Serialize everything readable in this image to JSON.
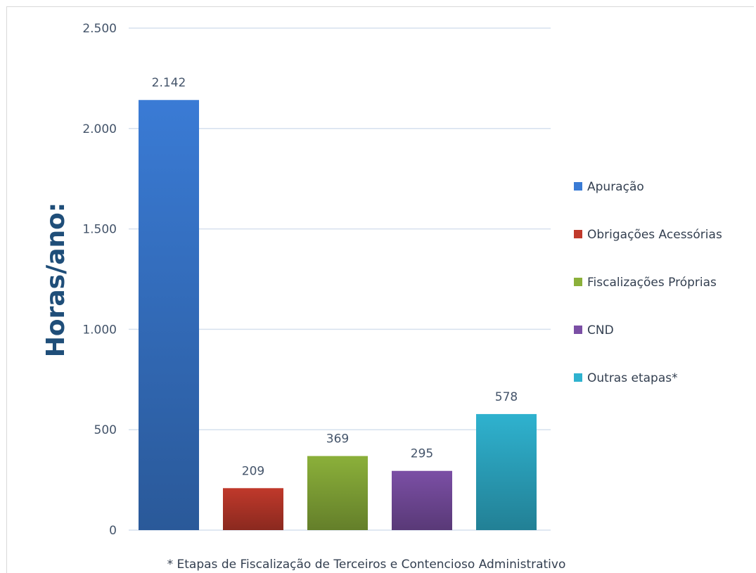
{
  "chart_data": {
    "type": "bar",
    "categories": [
      "Apuração",
      "Obrigações Acessórias",
      "Fiscalizações Próprias",
      "CND",
      "Outras etapas*"
    ],
    "values": [
      2142,
      209,
      369,
      295,
      578
    ],
    "value_labels": [
      "2.142",
      "209",
      "369",
      "295",
      "578"
    ],
    "colors": [
      "#3a7bd5",
      "#c0392b",
      "#8bb03a",
      "#7b4fa5",
      "#2fb2cf"
    ],
    "ylabel": "Horas/ano:",
    "ylim": [
      0,
      2500
    ],
    "yticks": [
      0,
      500,
      1000,
      1500,
      2000,
      2500
    ],
    "ytick_labels": [
      "0",
      "500",
      "1.000",
      "1.500",
      "2.000",
      "2.500"
    ],
    "grid": true,
    "legend_position": "right",
    "footnote": "* Etapas de Fiscalização de Terceiros e Contencioso Administrativo"
  }
}
